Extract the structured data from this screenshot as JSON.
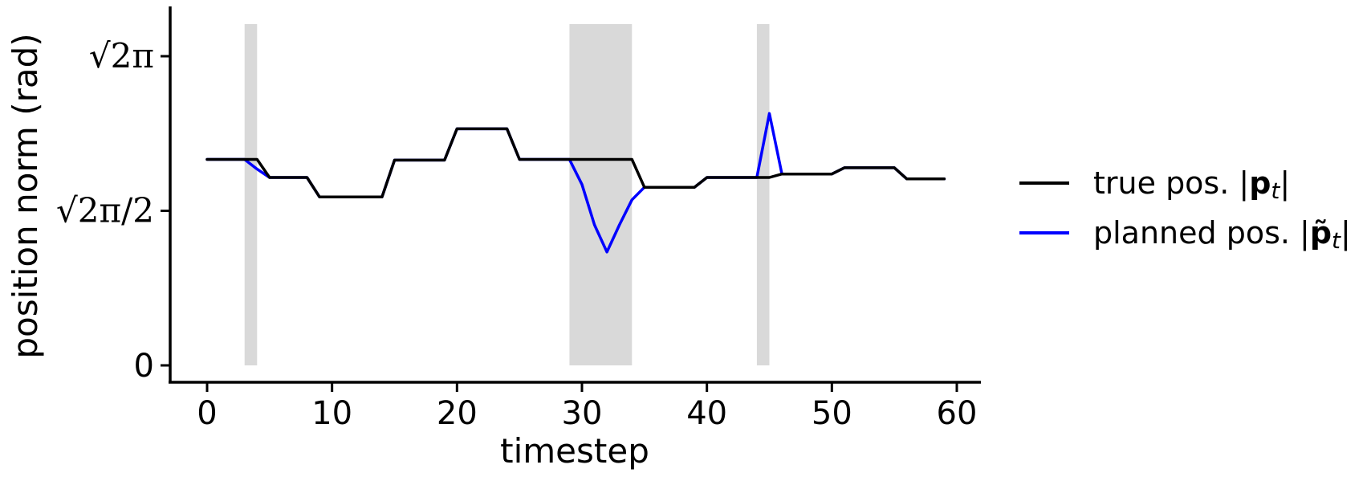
{
  "chart_data": {
    "type": "line",
    "xlabel": "timestep",
    "ylabel": "position norm (rad)",
    "xlim": [
      -3,
      62
    ],
    "ylim": [
      -0.25,
      4.55
    ],
    "x_ticks": [
      0,
      10,
      20,
      30,
      40,
      50,
      60
    ],
    "y_ticks": [
      {
        "value": 0,
        "label": "0"
      },
      {
        "value": 2.221,
        "label": "√2π/2"
      },
      {
        "value": 4.443,
        "label": "√2π"
      }
    ],
    "shaded_intervals": [
      [
        3,
        4
      ],
      [
        29,
        34
      ],
      [
        44,
        45
      ]
    ],
    "grid": false,
    "legend_position": "right",
    "series": [
      {
        "name": "true pos. |pt|",
        "legend_math": {
          "prefix": "true pos. |",
          "bold": "p",
          "sub": "t",
          "suffix": "|"
        },
        "color": "#000000",
        "x": [
          0,
          1,
          2,
          3,
          4,
          5,
          6,
          7,
          8,
          9,
          10,
          11,
          12,
          13,
          14,
          15,
          16,
          17,
          18,
          19,
          20,
          21,
          22,
          23,
          24,
          25,
          26,
          27,
          28,
          29,
          30,
          31,
          32,
          33,
          34,
          35,
          36,
          37,
          38,
          39,
          40,
          41,
          42,
          43,
          44,
          45,
          46,
          47,
          48,
          49,
          50,
          51,
          52,
          53,
          54,
          55,
          56,
          57,
          58,
          59
        ],
        "y": [
          2.96,
          2.96,
          2.96,
          2.96,
          2.96,
          2.7,
          2.7,
          2.7,
          2.7,
          2.42,
          2.42,
          2.42,
          2.42,
          2.42,
          2.42,
          2.95,
          2.95,
          2.95,
          2.95,
          2.95,
          3.4,
          3.4,
          3.4,
          3.4,
          3.4,
          2.96,
          2.96,
          2.96,
          2.96,
          2.96,
          2.96,
          2.96,
          2.96,
          2.96,
          2.96,
          2.56,
          2.56,
          2.56,
          2.56,
          2.56,
          2.7,
          2.7,
          2.7,
          2.7,
          2.7,
          2.7,
          2.75,
          2.75,
          2.75,
          2.75,
          2.75,
          2.84,
          2.84,
          2.84,
          2.84,
          2.84,
          2.68,
          2.68,
          2.68,
          2.68
        ]
      },
      {
        "name": "planned pos. |p̃t|",
        "legend_math": {
          "prefix": "planned pos. |",
          "bold": "p̃",
          "sub": "t",
          "suffix": "|"
        },
        "color": "#0000ff",
        "x": [
          0,
          1,
          2,
          3,
          4,
          5,
          6,
          7,
          8,
          9,
          10,
          11,
          12,
          13,
          14,
          15,
          16,
          17,
          18,
          19,
          20,
          21,
          22,
          23,
          24,
          25,
          26,
          27,
          28,
          29,
          30,
          31,
          32,
          33,
          34,
          35,
          36,
          37,
          38,
          39,
          40,
          41,
          42,
          43,
          44,
          45,
          46,
          47,
          48,
          49,
          50,
          51,
          52,
          53,
          54,
          55,
          56,
          57,
          58,
          59
        ],
        "y": [
          2.96,
          2.96,
          2.96,
          2.96,
          2.82,
          2.7,
          2.7,
          2.7,
          2.7,
          2.42,
          2.42,
          2.42,
          2.42,
          2.42,
          2.42,
          2.95,
          2.95,
          2.95,
          2.95,
          2.95,
          3.4,
          3.4,
          3.4,
          3.4,
          3.4,
          2.96,
          2.96,
          2.96,
          2.96,
          2.96,
          2.6,
          2.02,
          1.63,
          2.02,
          2.38,
          2.56,
          2.56,
          2.56,
          2.56,
          2.56,
          2.7,
          2.7,
          2.7,
          2.7,
          2.7,
          3.62,
          2.75,
          2.75,
          2.75,
          2.75,
          2.75,
          2.84,
          2.84,
          2.84,
          2.84,
          2.84,
          2.68,
          2.68,
          2.68,
          2.68
        ]
      }
    ]
  }
}
